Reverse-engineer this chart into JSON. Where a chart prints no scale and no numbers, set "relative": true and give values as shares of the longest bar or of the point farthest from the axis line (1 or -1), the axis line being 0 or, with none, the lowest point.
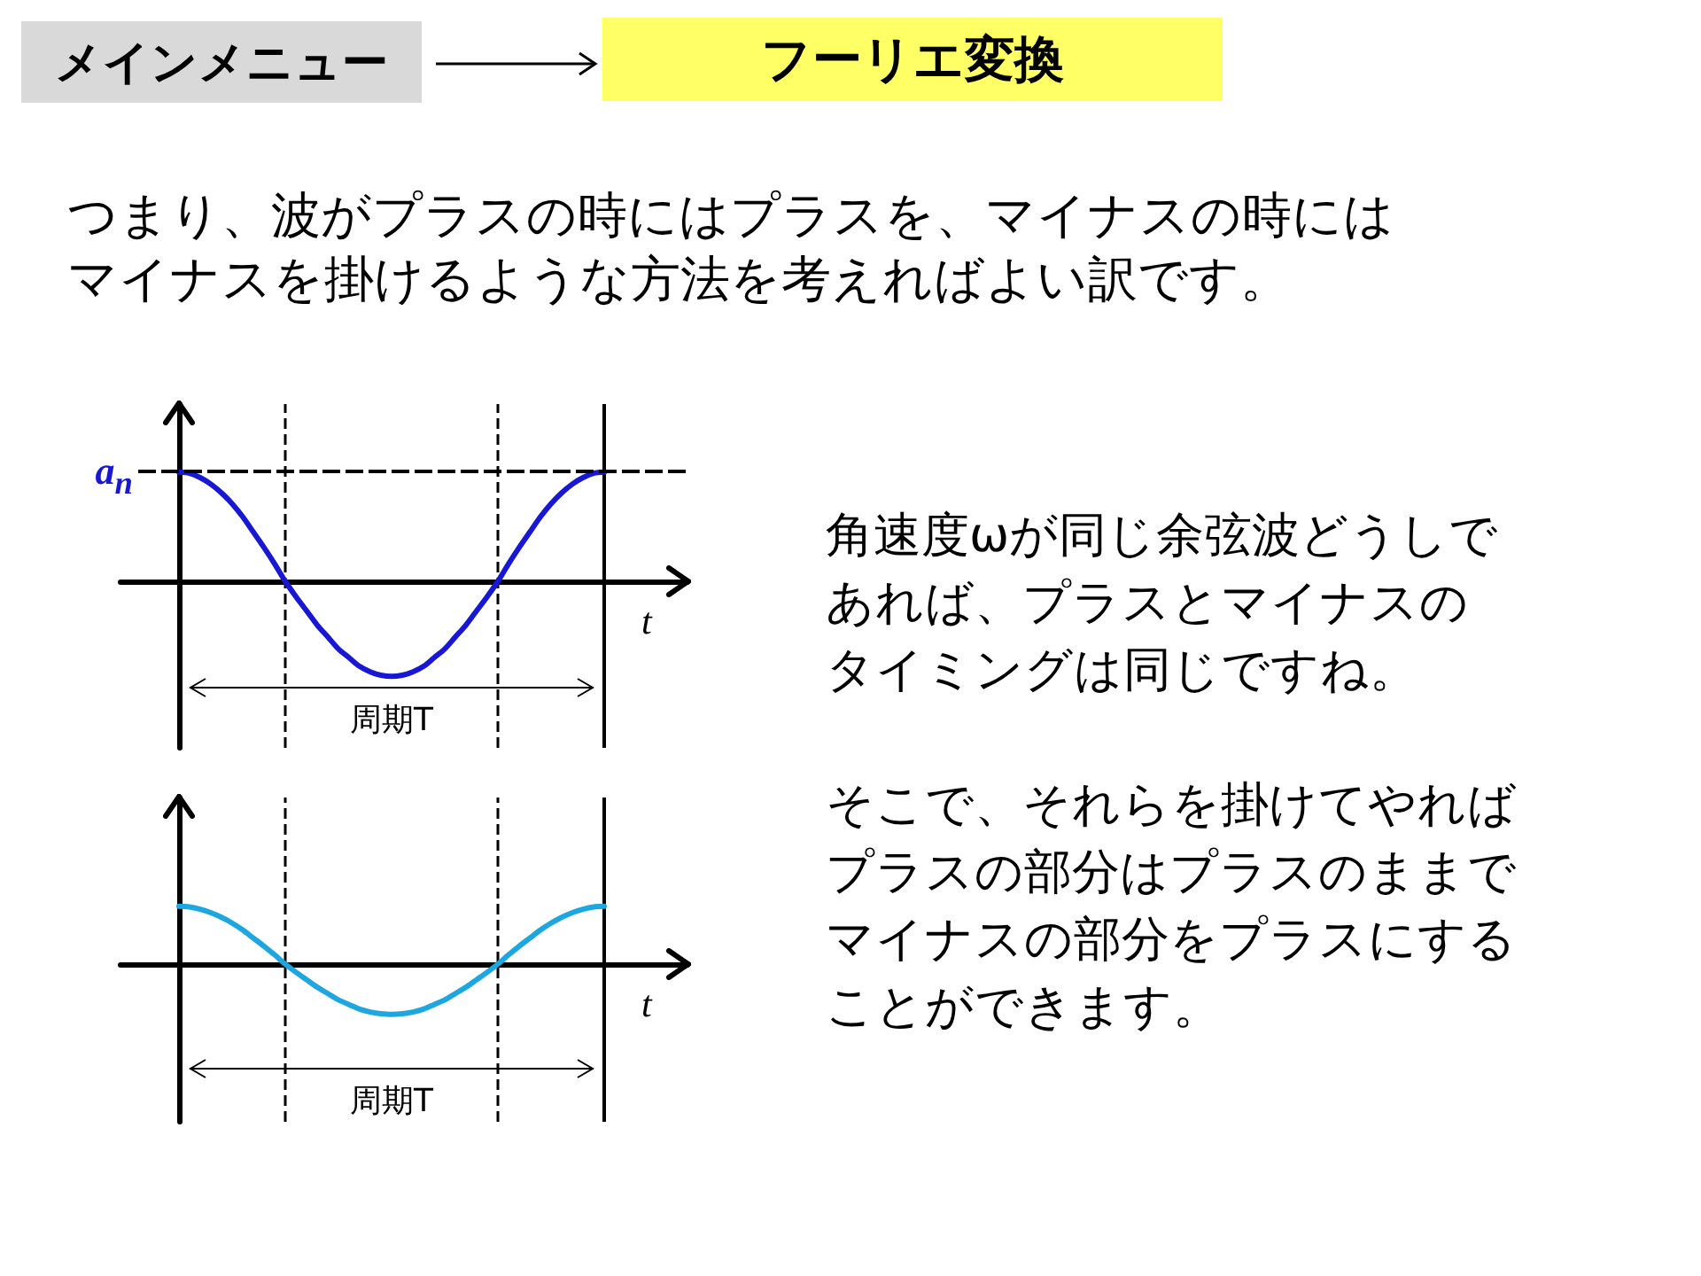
{
  "chart_data": [
    {
      "type": "other",
      "title": "フーリエ変換",
      "annotations": [
        "メインメニュー"
      ]
    },
    {
      "type": "other",
      "annotations": [
        "つまり、波がプラスの時にはプラスを、マイナスの時には",
        "マイナスを掛けるような方法を考えればよい訳です。"
      ]
    },
    {
      "type": "line",
      "relative": true,
      "xlabel": "t",
      "categories": [
        null,
        null,
        null,
        null,
        null,
        null,
        null,
        null,
        null,
        null,
        null,
        null,
        null,
        null,
        null,
        null,
        null,
        null,
        null,
        null,
        null,
        null,
        null,
        null,
        null,
        null,
        null,
        null,
        null,
        null,
        null,
        null,
        null,
        null,
        null,
        null,
        null,
        null,
        null,
        null,
        null
      ],
      "series": [
        {
          "color": "#1818d4",
          "values": [
            1,
            0.99,
            0.95,
            0.89,
            0.81,
            0.71,
            0.59,
            0.45,
            0.31,
            0.16,
            0,
            -0.14,
            -0.27,
            -0.4,
            -0.51,
            -0.62,
            -0.7,
            -0.78,
            -0.83,
            -0.86,
            -0.87,
            -0.86,
            -0.83,
            -0.78,
            -0.7,
            -0.62,
            -0.51,
            -0.4,
            -0.27,
            -0.14,
            0,
            0.16,
            0.31,
            0.45,
            0.59,
            0.71,
            0.81,
            0.89,
            0.95,
            0.99,
            1
          ]
        }
      ],
      "grid": false,
      "ref_lines": [
        {
          "axis": "y",
          "value": 1,
          "label": "a$_{n}$",
          "line_style": "dashed",
          "color": "#000000"
        }
      ],
      "annotations": [
        "周期T"
      ]
    },
    {
      "type": "line",
      "relative": true,
      "xlabel": "t",
      "categories": [
        null,
        null,
        null,
        null,
        null,
        null,
        null,
        null,
        null,
        null,
        null,
        null,
        null,
        null,
        null,
        null,
        null,
        null,
        null,
        null,
        null,
        null,
        null,
        null,
        null,
        null,
        null,
        null,
        null,
        null,
        null,
        null,
        null,
        null,
        null,
        null,
        null,
        null,
        null,
        null,
        null
      ],
      "series": [
        {
          "color": "#1ea6e0",
          "values": [
            1,
            0.99,
            0.95,
            0.89,
            0.81,
            0.71,
            0.59,
            0.45,
            0.31,
            0.16,
            0,
            -0.14,
            -0.27,
            -0.4,
            -0.51,
            -0.62,
            -0.7,
            -0.78,
            -0.83,
            -0.86,
            -0.87,
            -0.86,
            -0.83,
            -0.78,
            -0.7,
            -0.62,
            -0.51,
            -0.4,
            -0.27,
            -0.14,
            0,
            0.16,
            0.31,
            0.45,
            0.59,
            0.71,
            0.81,
            0.89,
            0.95,
            0.99,
            1
          ]
        }
      ],
      "grid": false,
      "annotations": [
        "周期T"
      ]
    },
    {
      "type": "other",
      "annotations": [
        "角速度ωが同じ余弦波どうしで",
        "あれば、プラスとマイナスの",
        "タイミングは同じですね。"
      ]
    },
    {
      "type": "other",
      "annotations": [
        "そこで、それらを掛けてやれば",
        "プラスの部分はプラスのままで",
        "マイナスの部分をプラスにする",
        "ことができます。"
      ]
    }
  ]
}
